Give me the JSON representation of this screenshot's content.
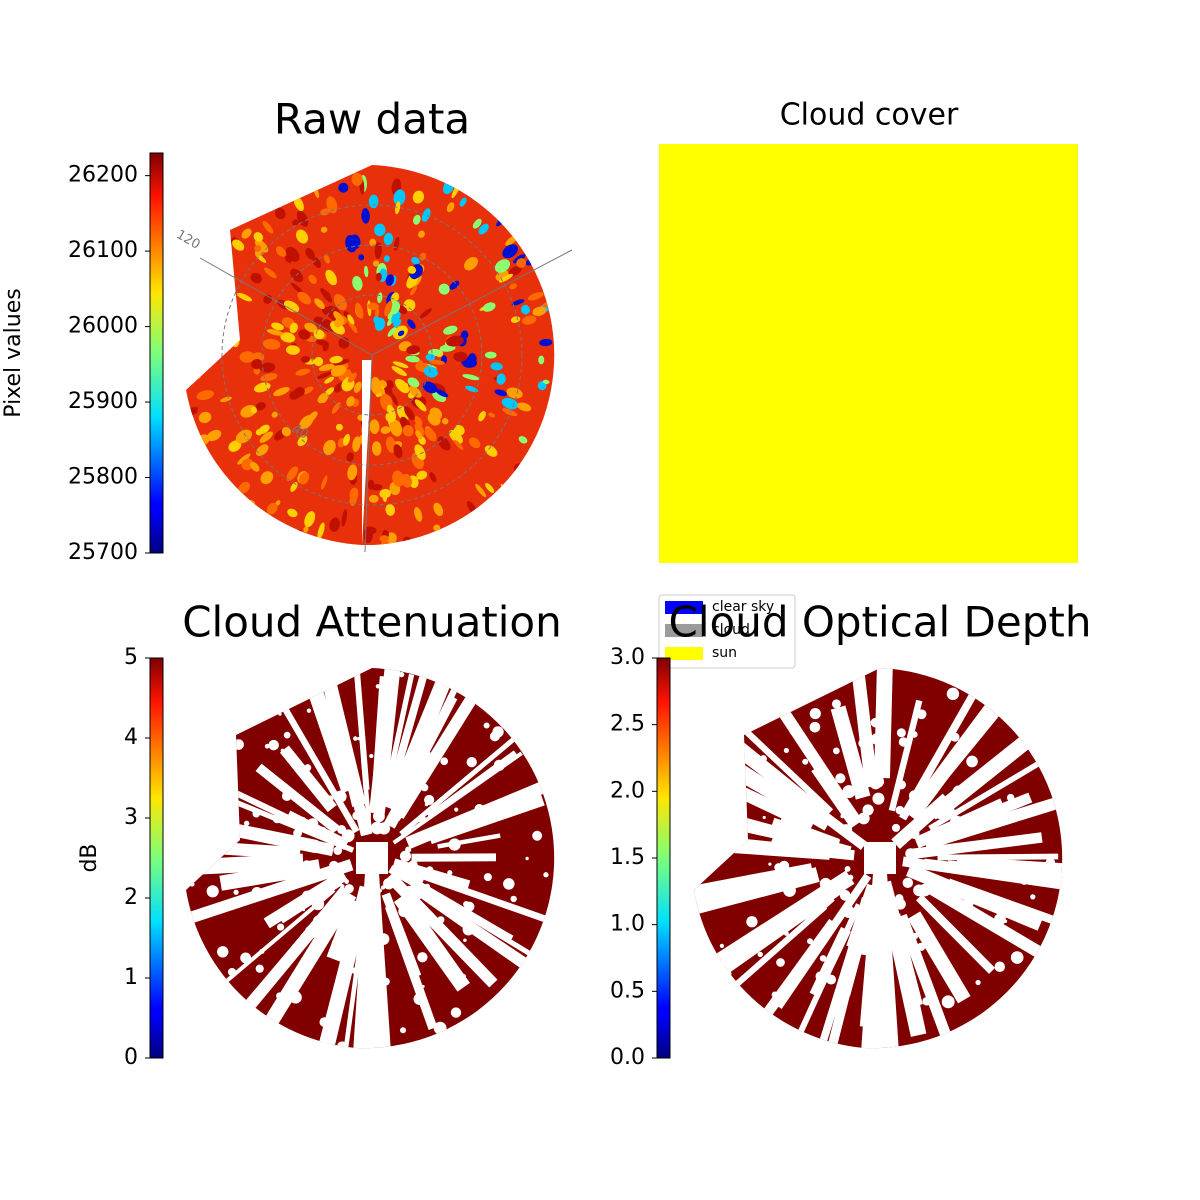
{
  "chart_data": [
    {
      "type": "image",
      "title": "Raw data",
      "colorbar": {
        "label": "Pixel values",
        "lim": [
          25700,
          26230
        ],
        "ticks": [
          25700,
          25800,
          25900,
          26000,
          26100,
          26200
        ]
      },
      "annotations": [
        "120",
        "40"
      ]
    },
    {
      "type": "image",
      "title": "Cloud cover",
      "legend": [
        {
          "name": "clear sky",
          "color": "#0000ff"
        },
        {
          "name": "cloud",
          "color": "#9b9b9b"
        },
        {
          "name": "sun",
          "color": "#ffff00"
        }
      ]
    },
    {
      "type": "image",
      "title": "Cloud Attenuation",
      "colorbar": {
        "label": "dB",
        "lim": [
          0,
          5
        ],
        "ticks": [
          0,
          1,
          2,
          3,
          4,
          5
        ]
      }
    },
    {
      "type": "image",
      "title": "Cloud Optical Depth",
      "colorbar": {
        "lim": [
          0,
          3
        ],
        "ticks": [
          {
            "value": 0,
            "label": "0.0"
          },
          {
            "value": 0.5,
            "label": "0.5"
          },
          {
            "value": 1,
            "label": "1.0"
          },
          {
            "value": 1.5,
            "label": "1.5"
          },
          {
            "value": 2,
            "label": "2.0"
          },
          {
            "value": 2.5,
            "label": "2.5"
          },
          {
            "value": 3,
            "label": "3.0"
          }
        ]
      }
    }
  ]
}
